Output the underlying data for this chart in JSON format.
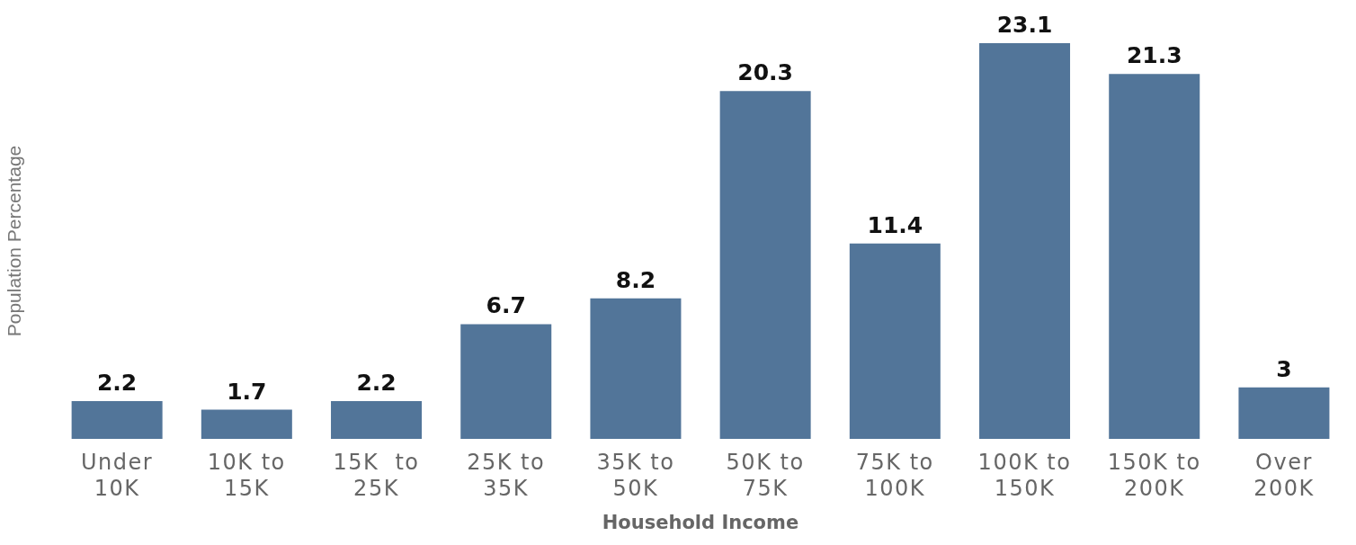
{
  "chart_data": {
    "type": "bar",
    "xlabel": "Household Income",
    "ylabel": "Population Percentage",
    "categories": [
      "Under 10K",
      "10K to 15K",
      "15K  to 25K",
      "25K to 35K",
      "35K to 50K",
      "50K to 75K",
      "75K to 100K",
      "100K to 150K",
      "150K to 200K",
      "Over 200K"
    ],
    "values": [
      2.2,
      1.7,
      2.2,
      6.7,
      8.2,
      20.3,
      11.4,
      23.1,
      21.3,
      3
    ],
    "color": "#527599",
    "data_labels": true
  }
}
